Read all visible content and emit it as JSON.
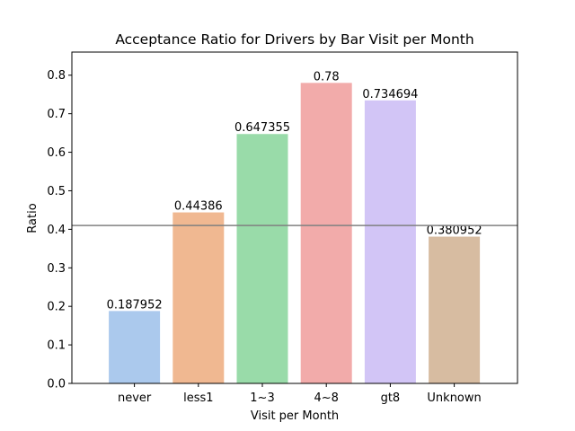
{
  "chart_data": {
    "type": "bar",
    "title": "Acceptance Ratio for Drivers by Bar Visit per Month",
    "xlabel": "Visit per Month",
    "ylabel": "Ratio",
    "categories": [
      "never",
      "less1",
      "1~3",
      "4~8",
      "gt8",
      "Unknown"
    ],
    "values": [
      0.187952,
      0.44386,
      0.647355,
      0.78,
      0.734694,
      0.380952
    ],
    "data_labels": [
      "0.187952",
      "0.44386",
      "0.647355",
      "0.78",
      "0.734694",
      "0.380952"
    ],
    "colors": [
      "#abc9ed",
      "#f0b891",
      "#99dba9",
      "#f2abaa",
      "#d2c5f6",
      "#d7bca1"
    ],
    "ylim": [
      0,
      0.86
    ],
    "yticks": [
      0.0,
      0.1,
      0.2,
      0.3,
      0.4,
      0.5,
      0.6,
      0.7,
      0.8
    ],
    "ytick_labels": [
      "0.0",
      "0.1",
      "0.2",
      "0.3",
      "0.4",
      "0.5",
      "0.6",
      "0.7",
      "0.8"
    ],
    "reference_line": {
      "value": 0.41,
      "color": "#808080"
    },
    "grid": false,
    "legend": "none"
  }
}
